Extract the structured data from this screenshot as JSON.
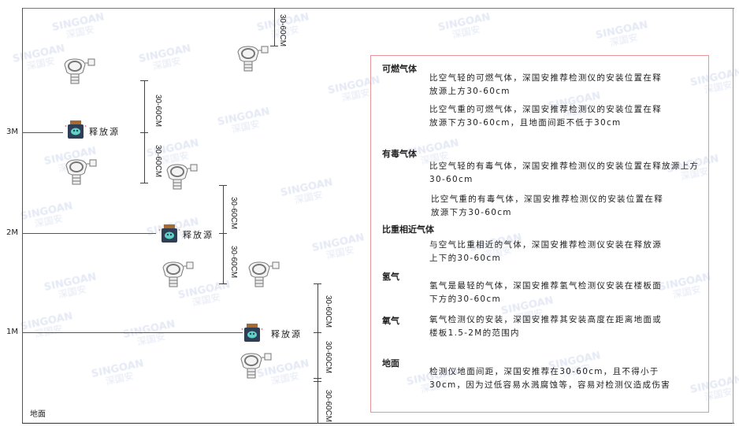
{
  "levels": {
    "m3": "3M",
    "m2": "2M",
    "m1": "1M",
    "ground": "地面"
  },
  "dimension_label": "30-60CM",
  "source_label": "释放源",
  "watermark": {
    "brand": "SINGOAN",
    "cn": "深国安"
  },
  "notes": {
    "combustible": {
      "title": "可燃气体",
      "light": "比空气轻的可燃气体，深国安推荐检测仪的安装位置在释放源上方30-60cm",
      "heavy": "比空气重的可燃气体，深国安推荐检测仪的安装位置在释放源下方30-60cm，且地面间距不低于30cm"
    },
    "toxic": {
      "title": "有毒气体",
      "light": "比空气轻的有毒气体，深国安推荐检测仪的安装位置在释放源上方30-60cm",
      "heavy": "比空气重的有毒气体，深国安推荐检测仪的安装位置在释放源下方30-60cm"
    },
    "similar": {
      "title": "比重相近气体",
      "text": "与空气比重相近的气体，深国安推荐检测仪安装在释放源上下的30-60cm"
    },
    "hydrogen": {
      "title": "氢气",
      "text": "氢气是最轻的气体，深国安推荐氢气检测仪安装在楼板面下方的30-60cm"
    },
    "oxygen": {
      "title": "氧气",
      "text": "氧气检测仪的安装，深国安推荐其安装高度在距离地面或楼板1.5-2M的范围内"
    },
    "ground": {
      "title": "地面",
      "text": "检测仪地面间距，深国安推荐在30-60cm，且不得小于30cm，因为过低容易水溅腐蚀等，容易对检测仪造成伤害"
    }
  },
  "colors": {
    "box_border": "#e8959a",
    "source_body": "#2e3f55",
    "source_face": "#5fd3c8",
    "source_cap": "#a86a2e"
  }
}
